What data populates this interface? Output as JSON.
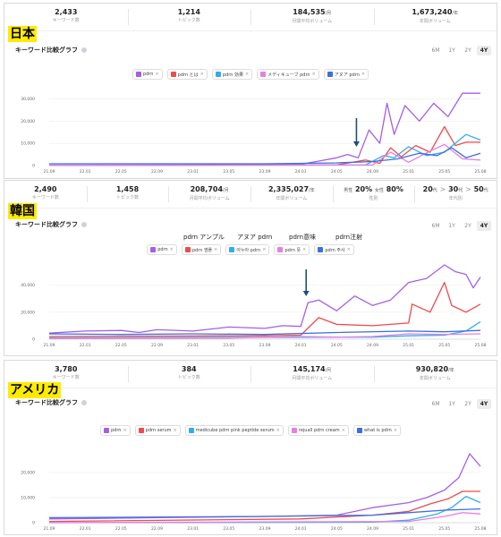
{
  "title_label": "キーワード比較グラフ",
  "periods": [
    "6M",
    "1Y",
    "2Y",
    "4Y"
  ],
  "active_period": "4Y",
  "colors": {
    "purple": "#a55ee8",
    "red": "#ee4b4b",
    "cyan": "#31aee9",
    "pink": "#e77fe2",
    "blue": "#3a6fe0",
    "arrow": "#1e4f78"
  },
  "panels": [
    {
      "country": "日本",
      "stats": [
        {
          "value": "2,433",
          "unit": "",
          "label": "キーワード数"
        },
        {
          "value": "1,214",
          "unit": "",
          "label": "トピック数"
        },
        {
          "value": "184,535",
          "unit": "/月",
          "label": "月間平均ボリューム"
        },
        {
          "value": "1,673,240",
          "unit": "/年",
          "label": "年間ボリューム"
        }
      ],
      "legend": [
        {
          "label": "pdrn",
          "color": "#a55ee8"
        },
        {
          "label": "pdrn とは",
          "color": "#ee4b4b"
        },
        {
          "label": "pdrn 効果",
          "color": "#31aee9"
        },
        {
          "label": "メディキューブ pdrn",
          "color": "#e77fe2"
        },
        {
          "label": "アヌア pdrn",
          "color": "#3a6fe0"
        }
      ]
    },
    {
      "country": "韓国",
      "stats": [
        {
          "value": "2,490",
          "unit": "",
          "label": "キーワード数"
        },
        {
          "value": "1,458",
          "unit": "",
          "label": "トピック数"
        },
        {
          "value": "208,704",
          "unit": "/月",
          "label": "月間平均ボリューム"
        },
        {
          "value": "2,335,027",
          "unit": "/年",
          "label": "年間ボリューム"
        }
      ],
      "gender": {
        "male_label": "男性",
        "male": "20%",
        "female_label": "女性",
        "female": "80%",
        "label": "性別"
      },
      "age": {
        "a": "20",
        "b": "30",
        "c": "50",
        "unit": "代",
        "label": "年代別"
      },
      "legend": [
        {
          "label": "pdrn",
          "color": "#a55ee8"
        },
        {
          "label": "pdrn 앰플",
          "color": "#ee4b4b"
        },
        {
          "label": "아누아 pdrn",
          "color": "#31aee9"
        },
        {
          "label": "pdrn 뜻",
          "color": "#e77fe2"
        },
        {
          "label": "pdrn 주사",
          "color": "#3a6fe0"
        }
      ],
      "annotations": [
        "pdrn アンプル",
        "アヌア pdrn",
        "pdrn意味",
        "pdrn注射"
      ]
    },
    {
      "country": "アメリカ",
      "stats": [
        {
          "value": "3,780",
          "unit": "",
          "label": "キーワード数"
        },
        {
          "value": "384",
          "unit": "",
          "label": "トピック数"
        },
        {
          "value": "145,174",
          "unit": "/月",
          "label": "月間平均ボリューム"
        },
        {
          "value": "930,820",
          "unit": "/年",
          "label": "年間ボリューム"
        }
      ],
      "legend": [
        {
          "label": "pdrn",
          "color": "#a55ee8"
        },
        {
          "label": "pdrn serum",
          "color": "#ee4b4b"
        },
        {
          "label": "medicube pdrn pink peptide serum",
          "color": "#31aee9"
        },
        {
          "label": "rejuall pdrn cream",
          "color": "#e77fe2"
        },
        {
          "label": "what is pdrn",
          "color": "#3a6fe0"
        }
      ]
    }
  ],
  "chart_data": [
    {
      "type": "line",
      "title": "キーワード比較グラフ",
      "region": "日本",
      "x": [
        "21.09",
        "22.01",
        "22.05",
        "22.09",
        "23.01",
        "23.05",
        "23.09",
        "24.01",
        "24.05",
        "24.09",
        "25.01",
        "25.05",
        "25.08"
      ],
      "ylim": [
        0,
        35000
      ],
      "yticks": [
        "0",
        "10,000",
        "20,000",
        "30,000"
      ],
      "grid": true,
      "legend_position": "top-center",
      "series": [
        {
          "name": "pdrn",
          "color": "#a55ee8",
          "points": [
            [
              0,
              200
            ],
            [
              4,
              300
            ],
            [
              7,
              600
            ],
            [
              7.5,
              2000
            ],
            [
              8,
              3500
            ],
            [
              8.3,
              5000
            ],
            [
              8.6,
              3500
            ],
            [
              8.9,
              16000
            ],
            [
              9.2,
              10000
            ],
            [
              9.4,
              28000
            ],
            [
              9.6,
              14000
            ],
            [
              9.9,
              27000
            ],
            [
              10.3,
              20000
            ],
            [
              10.7,
              28000
            ],
            [
              11.1,
              22000
            ],
            [
              11.5,
              32500
            ],
            [
              12,
              32500
            ]
          ]
        },
        {
          "name": "pdrn とは",
          "color": "#ee4b4b",
          "points": [
            [
              0,
              100
            ],
            [
              8,
              300
            ],
            [
              8.8,
              2500
            ],
            [
              9.2,
              1000
            ],
            [
              9.5,
              8000
            ],
            [
              9.8,
              4000
            ],
            [
              10.2,
              9000
            ],
            [
              10.6,
              6000
            ],
            [
              11,
              17500
            ],
            [
              11.3,
              9000
            ],
            [
              11.6,
              10500
            ],
            [
              12,
              10500
            ]
          ]
        },
        {
          "name": "pdrn 効果",
          "color": "#31aee9",
          "points": [
            [
              0,
              100
            ],
            [
              8.8,
              300
            ],
            [
              9.3,
              4500
            ],
            [
              9.6,
              3500
            ],
            [
              10,
              8500
            ],
            [
              10.5,
              4500
            ],
            [
              11,
              6000
            ],
            [
              11.6,
              14000
            ],
            [
              12,
              11500
            ]
          ]
        },
        {
          "name": "メディキューブ pdrn",
          "color": "#e77fe2",
          "points": [
            [
              0,
              100
            ],
            [
              9,
              300
            ],
            [
              9.5,
              6000
            ],
            [
              10,
              1500
            ],
            [
              10.6,
              6500
            ],
            [
              11,
              9500
            ],
            [
              11.5,
              3000
            ],
            [
              12,
              2500
            ]
          ]
        },
        {
          "name": "アヌア pdrn",
          "color": "#3a6fe0",
          "points": [
            [
              0,
              800
            ],
            [
              6,
              800
            ],
            [
              8,
              1200
            ],
            [
              9,
              1800
            ],
            [
              9.7,
              3000
            ],
            [
              10.3,
              5500
            ],
            [
              10.8,
              4500
            ],
            [
              11.2,
              8000
            ],
            [
              11.6,
              3500
            ],
            [
              12,
              5500
            ]
          ]
        }
      ]
    },
    {
      "type": "line",
      "title": "キーワード比較グラフ",
      "region": "韓国",
      "x": [
        "21.09",
        "22.01",
        "22.05",
        "22.09",
        "23.01",
        "23.05",
        "23.09",
        "24.01",
        "24.05",
        "24.09",
        "25.01",
        "25.05",
        "25.08"
      ],
      "ylim": [
        0,
        55000
      ],
      "yticks": [
        "0",
        "20,000",
        "40,000"
      ],
      "grid": true,
      "legend_position": "top-center",
      "series": [
        {
          "name": "pdrn",
          "color": "#a55ee8",
          "points": [
            [
              0,
              4500
            ],
            [
              1,
              6000
            ],
            [
              2,
              6500
            ],
            [
              2.5,
              5000
            ],
            [
              3,
              7000
            ],
            [
              4,
              6000
            ],
            [
              5,
              9000
            ],
            [
              6,
              8000
            ],
            [
              6.5,
              10000
            ],
            [
              7,
              9500
            ],
            [
              7.2,
              27000
            ],
            [
              7.5,
              29000
            ],
            [
              8,
              21000
            ],
            [
              8.5,
              32000
            ],
            [
              9,
              25000
            ],
            [
              9.5,
              29000
            ],
            [
              10,
              42000
            ],
            [
              10.5,
              45000
            ],
            [
              11,
              55000
            ],
            [
              11.3,
              50000
            ],
            [
              11.6,
              48000
            ],
            [
              11.8,
              38000
            ],
            [
              12,
              46000
            ]
          ]
        },
        {
          "name": "pdrn 앰플",
          "color": "#ee4b4b",
          "points": [
            [
              0,
              2000
            ],
            [
              6,
              2500
            ],
            [
              7,
              3000
            ],
            [
              7.5,
              16000
            ],
            [
              8,
              11000
            ],
            [
              9,
              10000
            ],
            [
              10,
              12000
            ],
            [
              10.1,
              26000
            ],
            [
              10.6,
              20000
            ],
            [
              11,
              42000
            ],
            [
              11.2,
              25000
            ],
            [
              11.6,
              20000
            ],
            [
              12,
              26000
            ]
          ]
        },
        {
          "name": "아누아 pdrn",
          "color": "#31aee9",
          "points": [
            [
              0,
              1000
            ],
            [
              9,
              1500
            ],
            [
              10,
              2500
            ],
            [
              11,
              3000
            ],
            [
              11.6,
              6000
            ],
            [
              12,
              13000
            ]
          ]
        },
        {
          "name": "pdrn 뜻",
          "color": "#e77fe2",
          "points": [
            [
              0,
              500
            ],
            [
              5,
              800
            ],
            [
              7,
              2000
            ],
            [
              8,
              1500
            ],
            [
              9,
              2000
            ],
            [
              10,
              4000
            ],
            [
              11,
              3500
            ],
            [
              12,
              4000
            ]
          ]
        },
        {
          "name": "pdrn 주사",
          "color": "#3a6fe0",
          "points": [
            [
              0,
              4000
            ],
            [
              2,
              3500
            ],
            [
              4,
              4000
            ],
            [
              6,
              3500
            ],
            [
              8,
              5000
            ],
            [
              10,
              6000
            ],
            [
              11,
              5500
            ],
            [
              12,
              6500
            ]
          ]
        }
      ]
    },
    {
      "type": "line",
      "title": "キーワード比較グラフ",
      "region": "アメリカ",
      "x": [
        "21.09",
        "22.01",
        "22.05",
        "22.09",
        "23.01",
        "23.05",
        "23.09",
        "24.01",
        "24.05",
        "24.09",
        "25.01",
        "25.05",
        "25.08"
      ],
      "ylim": [
        0,
        30000
      ],
      "yticks": [
        "0",
        "10,000",
        "20,000"
      ],
      "grid": true,
      "legend_position": "top-center",
      "series": [
        {
          "name": "pdrn",
          "color": "#a55ee8",
          "points": [
            [
              0,
              1500
            ],
            [
              3,
              2000
            ],
            [
              6,
              2500
            ],
            [
              8,
              3000
            ],
            [
              9,
              6000
            ],
            [
              10,
              8000
            ],
            [
              10.5,
              10000
            ],
            [
              11,
              13000
            ],
            [
              11.4,
              18000
            ],
            [
              11.7,
              27500
            ],
            [
              12,
              22500
            ]
          ]
        },
        {
          "name": "pdrn serum",
          "color": "#ee4b4b",
          "points": [
            [
              0,
              500
            ],
            [
              7,
              1500
            ],
            [
              9,
              3000
            ],
            [
              10,
              4500
            ],
            [
              10.6,
              7500
            ],
            [
              11.1,
              9500
            ],
            [
              11.5,
              12500
            ],
            [
              12,
              12500
            ]
          ]
        },
        {
          "name": "medicube pdrn pink peptide serum",
          "color": "#31aee9",
          "points": [
            [
              0,
              0
            ],
            [
              9,
              200
            ],
            [
              10,
              1000
            ],
            [
              10.8,
              3500
            ],
            [
              11.2,
              6000
            ],
            [
              11.6,
              10500
            ],
            [
              12,
              8000
            ]
          ]
        },
        {
          "name": "rejuall pdrn cream",
          "color": "#e77fe2",
          "points": [
            [
              0,
              0
            ],
            [
              10,
              500
            ],
            [
              11,
              2500
            ],
            [
              11.5,
              4000
            ],
            [
              12,
              3500
            ]
          ]
        },
        {
          "name": "what is pdrn",
          "color": "#3a6fe0",
          "points": [
            [
              0,
              2000
            ],
            [
              6,
              2500
            ],
            [
              9,
              3000
            ],
            [
              10,
              4000
            ],
            [
              11,
              5000
            ],
            [
              12,
              5500
            ]
          ]
        }
      ]
    }
  ]
}
